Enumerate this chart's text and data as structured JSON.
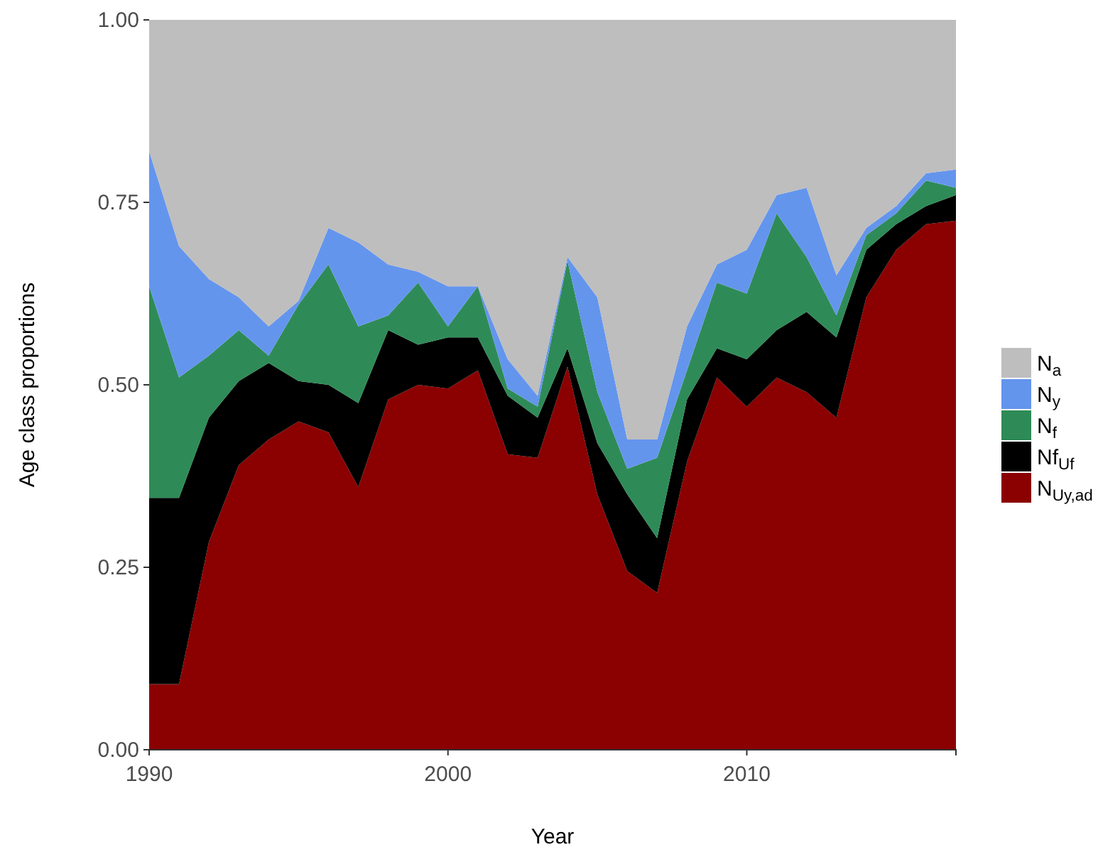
{
  "chart_data": {
    "type": "area",
    "stacked": true,
    "xlabel": "Year",
    "ylabel": "Age class proportions",
    "x": [
      1990,
      1991,
      1992,
      1993,
      1994,
      1995,
      1996,
      1997,
      1998,
      1999,
      2000,
      2001,
      2002,
      2003,
      2004,
      2005,
      2006,
      2007,
      2008,
      2009,
      2010,
      2011,
      2012,
      2013,
      2014,
      2015,
      2016,
      2017
    ],
    "xlim": [
      1990,
      2017
    ],
    "xticks": [
      1990,
      2000,
      2010
    ],
    "ylim": [
      0,
      1
    ],
    "yticks": [
      {
        "value": 0,
        "label": "0.00"
      },
      {
        "value": 0.25,
        "label": "0.25"
      },
      {
        "value": 0.5,
        "label": "0.50"
      },
      {
        "value": 0.75,
        "label": "0.75"
      },
      {
        "value": 1,
        "label": "1.00"
      }
    ],
    "grid": false,
    "legend": "right",
    "series": [
      {
        "name": "N$_{U}$$_{y,ad}$",
        "color": "#8b0000",
        "values": [
          0.09,
          0.09,
          0.285,
          0.39,
          0.425,
          0.45,
          0.435,
          0.36,
          0.48,
          0.5,
          0.495,
          0.52,
          0.405,
          0.4,
          0.525,
          0.35,
          0.245,
          0.215,
          0.395,
          0.51,
          0.47,
          0.51,
          0.49,
          0.455,
          0.62,
          0.685,
          0.72,
          0.725
        ]
      },
      {
        "name": "Nf$_{U}$$_{f}$",
        "color": "#000000",
        "values": [
          0.255,
          0.255,
          0.17,
          0.115,
          0.105,
          0.055,
          0.065,
          0.115,
          0.095,
          0.055,
          0.07,
          0.045,
          0.08,
          0.055,
          0.025,
          0.07,
          0.105,
          0.075,
          0.085,
          0.04,
          0.065,
          0.065,
          0.11,
          0.11,
          0.065,
          0.035,
          0.025,
          0.035
        ]
      },
      {
        "name": "N$_{f}$",
        "color": "#2e8b57",
        "values": [
          0.29,
          0.165,
          0.085,
          0.07,
          0.01,
          0.105,
          0.165,
          0.105,
          0.02,
          0.085,
          0.015,
          0.07,
          0.01,
          0.015,
          0.12,
          0.07,
          0.035,
          0.11,
          0.04,
          0.09,
          0.09,
          0.16,
          0.075,
          0.03,
          0.02,
          0.015,
          0.035,
          0.01
        ]
      },
      {
        "name": "N$_{y}$",
        "color": "#6495ed",
        "values": [
          0.185,
          0.18,
          0.105,
          0.045,
          0.04,
          0.005,
          0.05,
          0.115,
          0.07,
          0.015,
          0.055,
          0,
          0.04,
          0.015,
          0.005,
          0.13,
          0.04,
          0.025,
          0.06,
          0.025,
          0.06,
          0.025,
          0.095,
          0.055,
          0.01,
          0.01,
          0.01,
          0.025
        ]
      },
      {
        "name": "N$_{a}$",
        "color": "#bebebe",
        "values": [
          0.18,
          0.31,
          0.355,
          0.38,
          0.42,
          0.385,
          0.285,
          0.305,
          0.335,
          0.345,
          0.365,
          0.365,
          0.465,
          0.515,
          0.325,
          0.38,
          0.575,
          0.575,
          0.42,
          0.335,
          0.315,
          0.24,
          0.23,
          0.35,
          0.285,
          0.255,
          0.21,
          0.205
        ]
      }
    ]
  }
}
